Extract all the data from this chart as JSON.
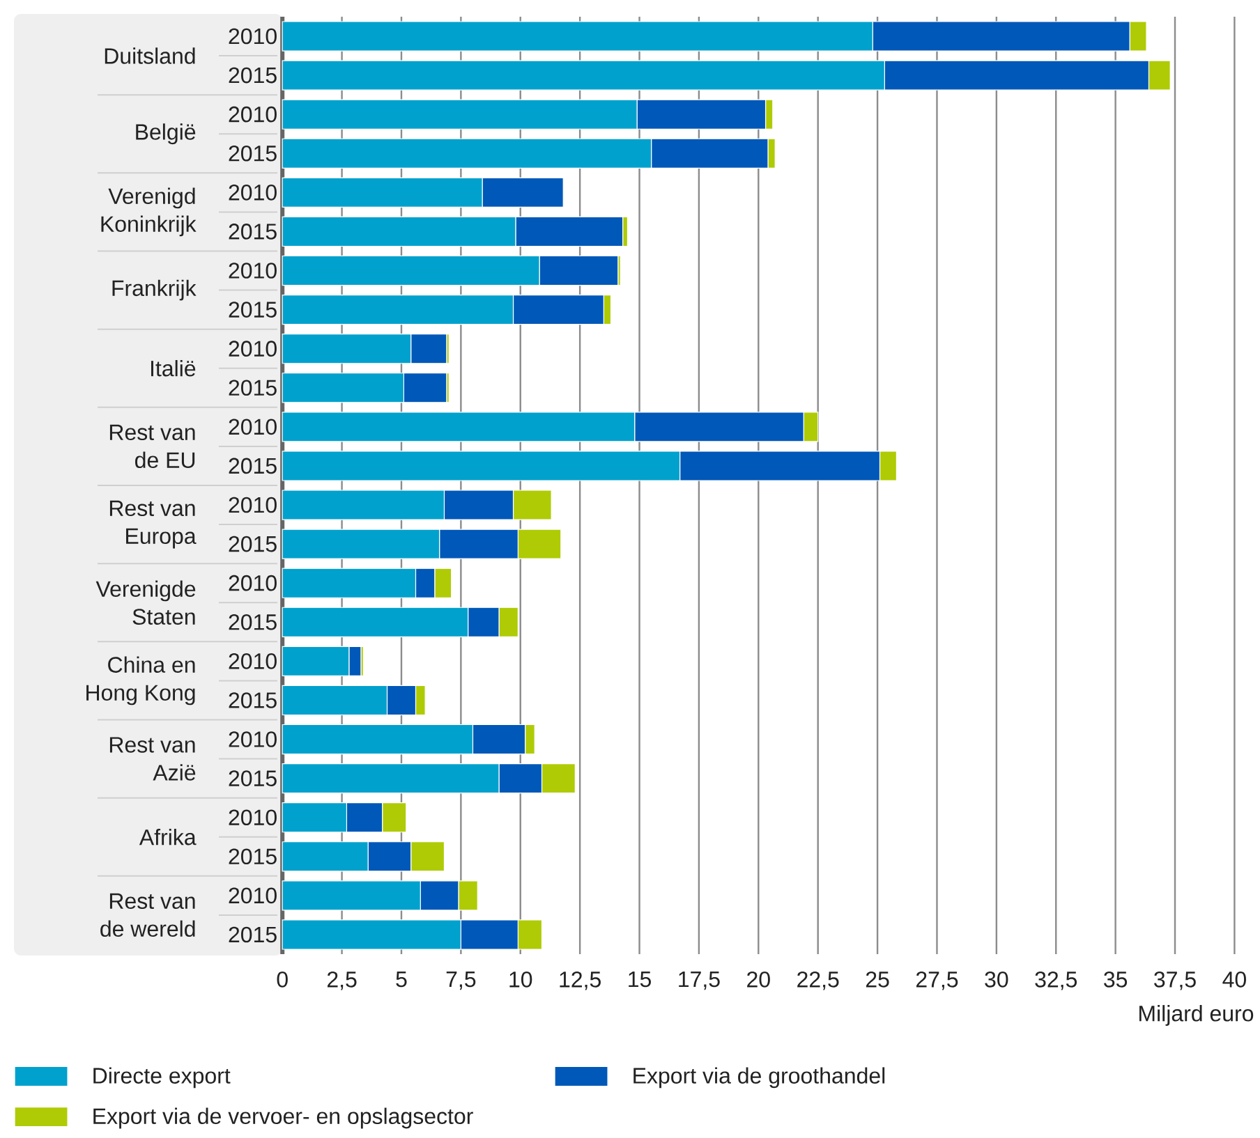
{
  "chart_data": {
    "type": "bar",
    "orientation": "horizontal",
    "stacked": true,
    "categories": [
      "2010",
      "2015",
      "2010",
      "2015",
      "2010",
      "2015",
      "2010",
      "2015",
      "2010",
      "2015",
      "2010",
      "2015",
      "2010",
      "2015",
      "2010",
      "2015",
      "2010",
      "2015",
      "2010",
      "2015",
      "2010",
      "2015",
      "2010",
      "2015"
    ],
    "annotations": [
      "Duitsland",
      "België",
      "Verenigd Koninkrijk",
      "Frankrijk",
      "Italië",
      "Rest van de EU",
      "Rest van Europa",
      "Verenigde Staten",
      "China en Hong Kong",
      "Rest van Azië",
      "Afrika",
      "Rest van de wereld"
    ],
    "xlabel": "Miljard euro",
    "xlim": [
      0,
      40
    ],
    "xticks": [
      0,
      {
        "value": 2.5,
        "label": "2,5"
      },
      5,
      {
        "value": 7.5,
        "label": "7,5"
      },
      10,
      {
        "value": 12.5,
        "label": "12,5"
      },
      15,
      {
        "value": 17.5,
        "label": "17,5"
      },
      20,
      {
        "value": 22.5,
        "label": "22,5"
      },
      25,
      {
        "value": 27.5,
        "label": "27,5"
      },
      30,
      {
        "value": 32.5,
        "label": "32,5"
      },
      35,
      {
        "value": 37.5,
        "label": "37,5"
      },
      40
    ],
    "grid": "x",
    "legend": "bottom",
    "series": [
      {
        "name": "Directe export",
        "color": "#00a1cd",
        "values": [
          24.8,
          25.3,
          14.9,
          15.5,
          8.4,
          9.8,
          10.8,
          9.7,
          5.4,
          5.1,
          14.8,
          16.7,
          6.8,
          6.6,
          5.6,
          7.8,
          2.8,
          4.4,
          8.0,
          9.1,
          2.7,
          3.6,
          5.8,
          7.5
        ]
      },
      {
        "name": "Export via de groothandel",
        "color": "#0058b8",
        "values": [
          10.8,
          11.1,
          5.4,
          4.9,
          3.4,
          4.5,
          3.3,
          3.8,
          1.5,
          1.8,
          7.1,
          8.4,
          2.9,
          3.3,
          0.8,
          1.3,
          0.5,
          1.2,
          2.2,
          1.8,
          1.5,
          1.8,
          1.6,
          2.4
        ]
      },
      {
        "name": "Export via de vervoer- en opslagsector",
        "color": "#afcb05",
        "values": [
          0.7,
          0.9,
          0.3,
          0.3,
          null,
          0.2,
          0.1,
          0.3,
          0.1,
          0.1,
          0.6,
          0.7,
          1.6,
          1.8,
          0.7,
          0.8,
          0.1,
          0.4,
          0.4,
          1.4,
          1.0,
          1.4,
          0.8,
          1.0
        ]
      }
    ]
  }
}
